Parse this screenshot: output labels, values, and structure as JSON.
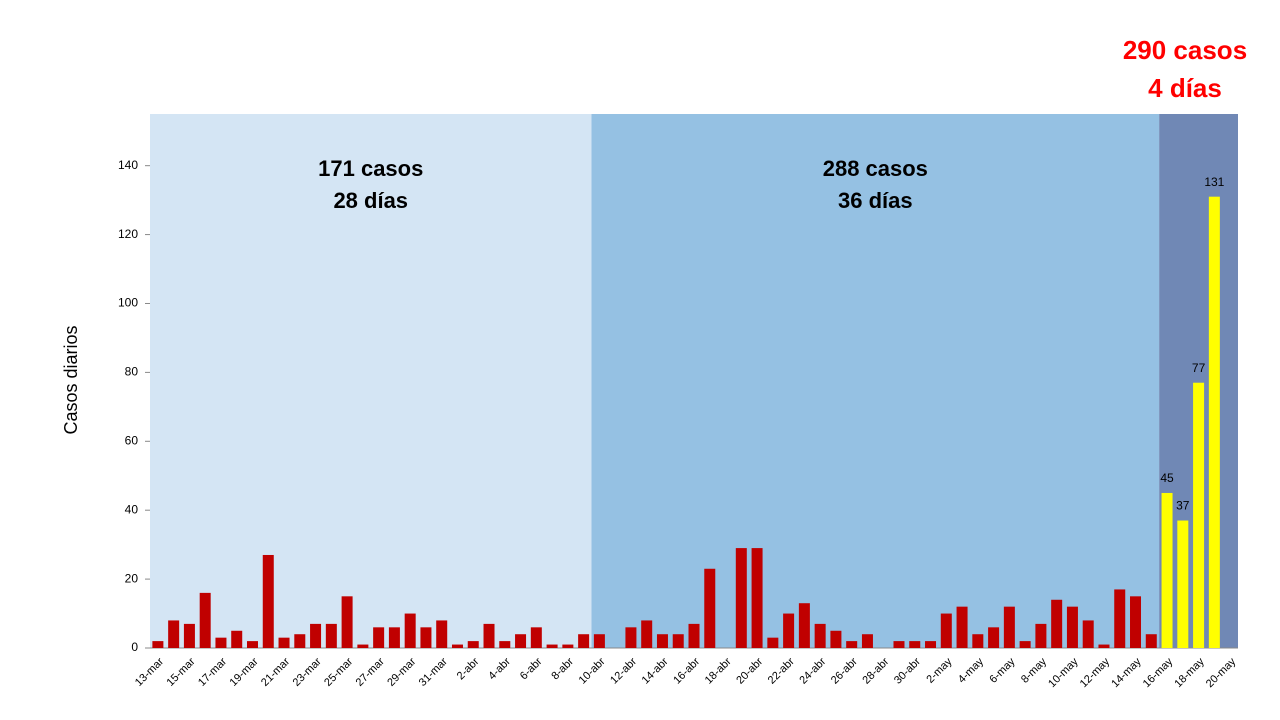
{
  "chart_data": {
    "type": "bar",
    "ylabel": "Casos diarios",
    "categories": [
      "13-mar",
      null,
      "15-mar",
      null,
      "17-mar",
      null,
      "19-mar",
      null,
      "21-mar",
      null,
      "23-mar",
      null,
      "25-mar",
      null,
      "27-mar",
      null,
      "29-mar",
      null,
      "31-mar",
      null,
      "2-abr",
      null,
      "4-abr",
      null,
      "6-abr",
      null,
      "8-abr",
      null,
      "10-abr",
      null,
      "12-abr",
      null,
      "14-abr",
      null,
      "16-abr",
      null,
      "18-abr",
      null,
      "20-abr",
      null,
      "22-abr",
      null,
      "24-abr",
      null,
      "26-abr",
      null,
      "28-abr",
      null,
      "30-abr",
      null,
      "2-may",
      null,
      "4-may",
      null,
      "6-may",
      null,
      "8-may",
      null,
      "10-may",
      null,
      "12-may",
      null,
      "14-may",
      null,
      "16-may",
      null,
      "18-may",
      null,
      "20-may"
    ],
    "series": [
      {
        "color": "#c00000",
        "region_color": "#d4e5f4",
        "annotation": [
          "171 casos",
          "28 días"
        ],
        "annotation_color": "#000000",
        "annotation_position": "inside",
        "values": [
          2,
          8,
          7,
          16,
          3,
          5,
          2,
          27,
          3,
          4,
          7,
          7,
          15,
          1,
          6,
          6,
          10,
          6,
          8,
          1,
          2,
          7,
          2,
          4,
          6,
          1,
          1,
          4,
          null,
          null,
          null,
          null,
          null,
          null,
          null,
          null,
          null,
          null,
          null,
          null,
          null,
          null,
          null,
          null,
          null,
          null,
          null,
          null,
          null,
          null,
          null,
          null,
          null,
          null,
          null,
          null,
          null,
          null,
          null,
          null,
          null,
          null,
          null,
          null,
          null,
          null,
          null,
          null,
          null
        ]
      },
      {
        "color": "#c00000",
        "region_color": "#95c1e3",
        "annotation": [
          "288 casos",
          "36 días"
        ],
        "annotation_color": "#000000",
        "annotation_position": "inside",
        "values": [
          null,
          null,
          null,
          null,
          null,
          null,
          null,
          null,
          null,
          null,
          null,
          null,
          null,
          null,
          null,
          null,
          null,
          null,
          null,
          null,
          null,
          null,
          null,
          null,
          null,
          null,
          null,
          null,
          4,
          0,
          6,
          8,
          4,
          4,
          7,
          23,
          0,
          29,
          29,
          3,
          10,
          13,
          7,
          5,
          2,
          4,
          0,
          2,
          2,
          2,
          10,
          12,
          4,
          6,
          12,
          2,
          7,
          14,
          12,
          8,
          1,
          17,
          15,
          4,
          null,
          null,
          null,
          null,
          null
        ]
      },
      {
        "color": "#ffff00",
        "region_color": "#7088b5",
        "annotation": [
          "290 casos",
          "4 días"
        ],
        "annotation_color": "#ff0000",
        "annotation_position": "above",
        "data_labels": true,
        "values": [
          null,
          null,
          null,
          null,
          null,
          null,
          null,
          null,
          null,
          null,
          null,
          null,
          null,
          null,
          null,
          null,
          null,
          null,
          null,
          null,
          null,
          null,
          null,
          null,
          null,
          null,
          null,
          null,
          null,
          null,
          null,
          null,
          null,
          null,
          null,
          null,
          null,
          null,
          null,
          null,
          null,
          null,
          null,
          null,
          null,
          null,
          null,
          null,
          null,
          null,
          null,
          null,
          null,
          null,
          null,
          null,
          null,
          null,
          null,
          null,
          null,
          null,
          null,
          null,
          45,
          37,
          77,
          131,
          null
        ]
      }
    ],
    "ylim": [
      0,
      155
    ],
    "yticks": [
      0,
      20,
      40,
      60,
      80,
      100,
      120,
      140
    ]
  }
}
